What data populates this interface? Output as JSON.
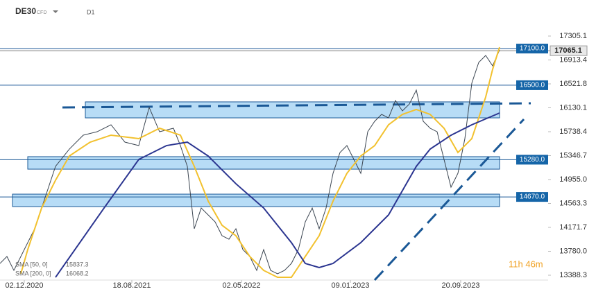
{
  "chart_data": {
    "type": "line",
    "symbol": "DE30",
    "instrument": "CFD",
    "timeframe": "D1",
    "xlim": [
      0,
      79
    ],
    "xticks": [
      {
        "value": 3.5,
        "label": "02.12.2020"
      },
      {
        "value": 19,
        "label": "18.08.2021"
      },
      {
        "value": 34.8,
        "label": "02.05.2022"
      },
      {
        "value": 50.5,
        "label": "09.01.2023"
      },
      {
        "value": 66.4,
        "label": "20.09.2023"
      }
    ],
    "ylim": [
      13308.8,
      17895.5
    ],
    "yticks": [
      17305.1,
      16913.4,
      16521.8,
      16130.1,
      15738.4,
      15346.7,
      {
        "value": 14955.0,
        "label": "14955.0"
      },
      14563.3,
      14171.7,
      {
        "value": 13780.0,
        "label": "13780.0"
      },
      13388.3
    ],
    "price": {
      "color": "#3a4450",
      "x": [
        0,
        1,
        2,
        5,
        6.5,
        8,
        10,
        12,
        14,
        16,
        18,
        20,
        21.5,
        23,
        25,
        26,
        27,
        28,
        29,
        30,
        31,
        32,
        33,
        34,
        35,
        36,
        37,
        38,
        39,
        40,
        41,
        42,
        43,
        44,
        45,
        46,
        47,
        48,
        49,
        50,
        51,
        52,
        53,
        54,
        55,
        56,
        57,
        58,
        59,
        60,
        61,
        62,
        63,
        64,
        65,
        66,
        67,
        68,
        69,
        70,
        71,
        72
      ],
      "values": [
        13581,
        13695,
        13467,
        14149,
        14660,
        15171,
        15454,
        15682,
        15738,
        15852,
        15568,
        15511,
        16136,
        15738,
        15795,
        15511,
        15171,
        14149,
        14489,
        14376,
        14262,
        14035,
        13978,
        14149,
        13808,
        13695,
        13467,
        13808,
        13467,
        13411,
        13467,
        13581,
        13808,
        14262,
        14489,
        14149,
        14489,
        15057,
        15398,
        15511,
        15284,
        15057,
        15738,
        15909,
        16022,
        15965,
        16249,
        16079,
        16192,
        16420,
        15909,
        15795,
        15738,
        15284,
        14830,
        15057,
        15625,
        16533,
        16874,
        16987,
        16817,
        17078
      ]
    },
    "series": [
      {
        "name": "SMA [50, 0]",
        "legend_value": "15837.3",
        "color": "#f2c12e",
        "x": [
          3,
          4,
          6,
          8,
          10,
          13,
          16,
          20,
          23,
          26,
          28,
          30,
          32,
          34,
          36,
          38,
          40,
          42,
          44,
          46,
          48,
          50,
          52,
          54,
          56,
          58,
          60,
          62,
          64,
          66,
          68,
          70,
          71,
          72
        ],
        "values": [
          13411,
          13808,
          14489,
          14943,
          15341,
          15568,
          15682,
          15625,
          15795,
          15682,
          15171,
          14603,
          14206,
          14035,
          13695,
          13467,
          13354,
          13354,
          13695,
          14035,
          14603,
          15057,
          15341,
          15511,
          15852,
          16022,
          16102,
          16022,
          15795,
          15398,
          15625,
          16306,
          16760,
          17123
        ]
      },
      {
        "name": "SMA [200, 0]",
        "legend_value": "16068.2",
        "color": "#2b3590",
        "x": [
          8,
          15,
          20,
          24,
          27,
          30,
          34,
          38,
          42,
          44,
          46,
          48,
          52,
          56,
          60,
          62,
          65,
          68,
          72
        ],
        "values": [
          13354,
          14489,
          15284,
          15511,
          15568,
          15341,
          14886,
          14489,
          13922,
          13581,
          13513,
          13581,
          13922,
          14376,
          15171,
          15454,
          15681,
          15852,
          16045
        ]
      }
    ],
    "levels": [
      {
        "value": 17100.0,
        "label": "17100.0"
      },
      {
        "value": 16500.0,
        "label": "16500.0"
      },
      {
        "value": 15280.0,
        "label": "15280.0"
      },
      {
        "value": 14670.0,
        "label": "14670.0"
      }
    ],
    "zones": [
      {
        "from": 12.3,
        "low": 15965,
        "high": 16227
      },
      {
        "from": 4,
        "low": 15125,
        "high": 15330
      },
      {
        "from": 1.8,
        "low": 14512,
        "high": 14716
      }
    ],
    "last_price": {
      "value": 17065.1,
      "label": "17065.1"
    },
    "timer": "11h 46m"
  }
}
